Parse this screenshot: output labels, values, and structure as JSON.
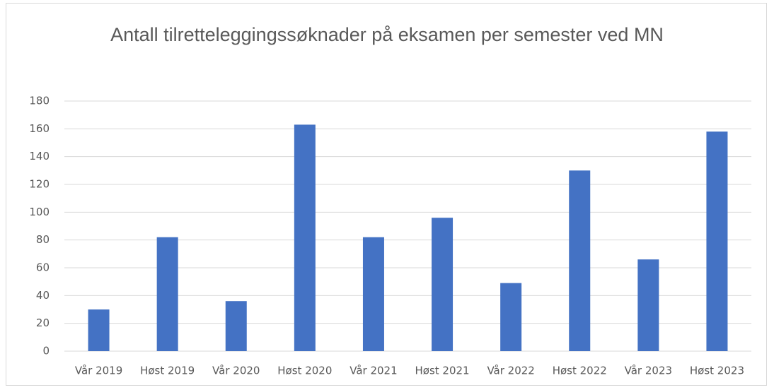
{
  "chart_data": {
    "type": "bar",
    "title": "Antall tilretteleggingssøknader på eksamen per semester ved MN",
    "categories": [
      "Vår 2019",
      "Høst 2019",
      "Vår 2020",
      "Høst 2020",
      "Vår 2021",
      "Høst 2021",
      "Vår 2022",
      "Høst 2022",
      "Vår 2023",
      "Høst 2023"
    ],
    "values": [
      30,
      82,
      36,
      163,
      82,
      96,
      49,
      130,
      66,
      158
    ],
    "color": "#4472c4",
    "ylim": [
      0,
      180
    ],
    "yticks": [
      0,
      20,
      40,
      60,
      80,
      100,
      120,
      140,
      160,
      180
    ],
    "grid": true
  }
}
